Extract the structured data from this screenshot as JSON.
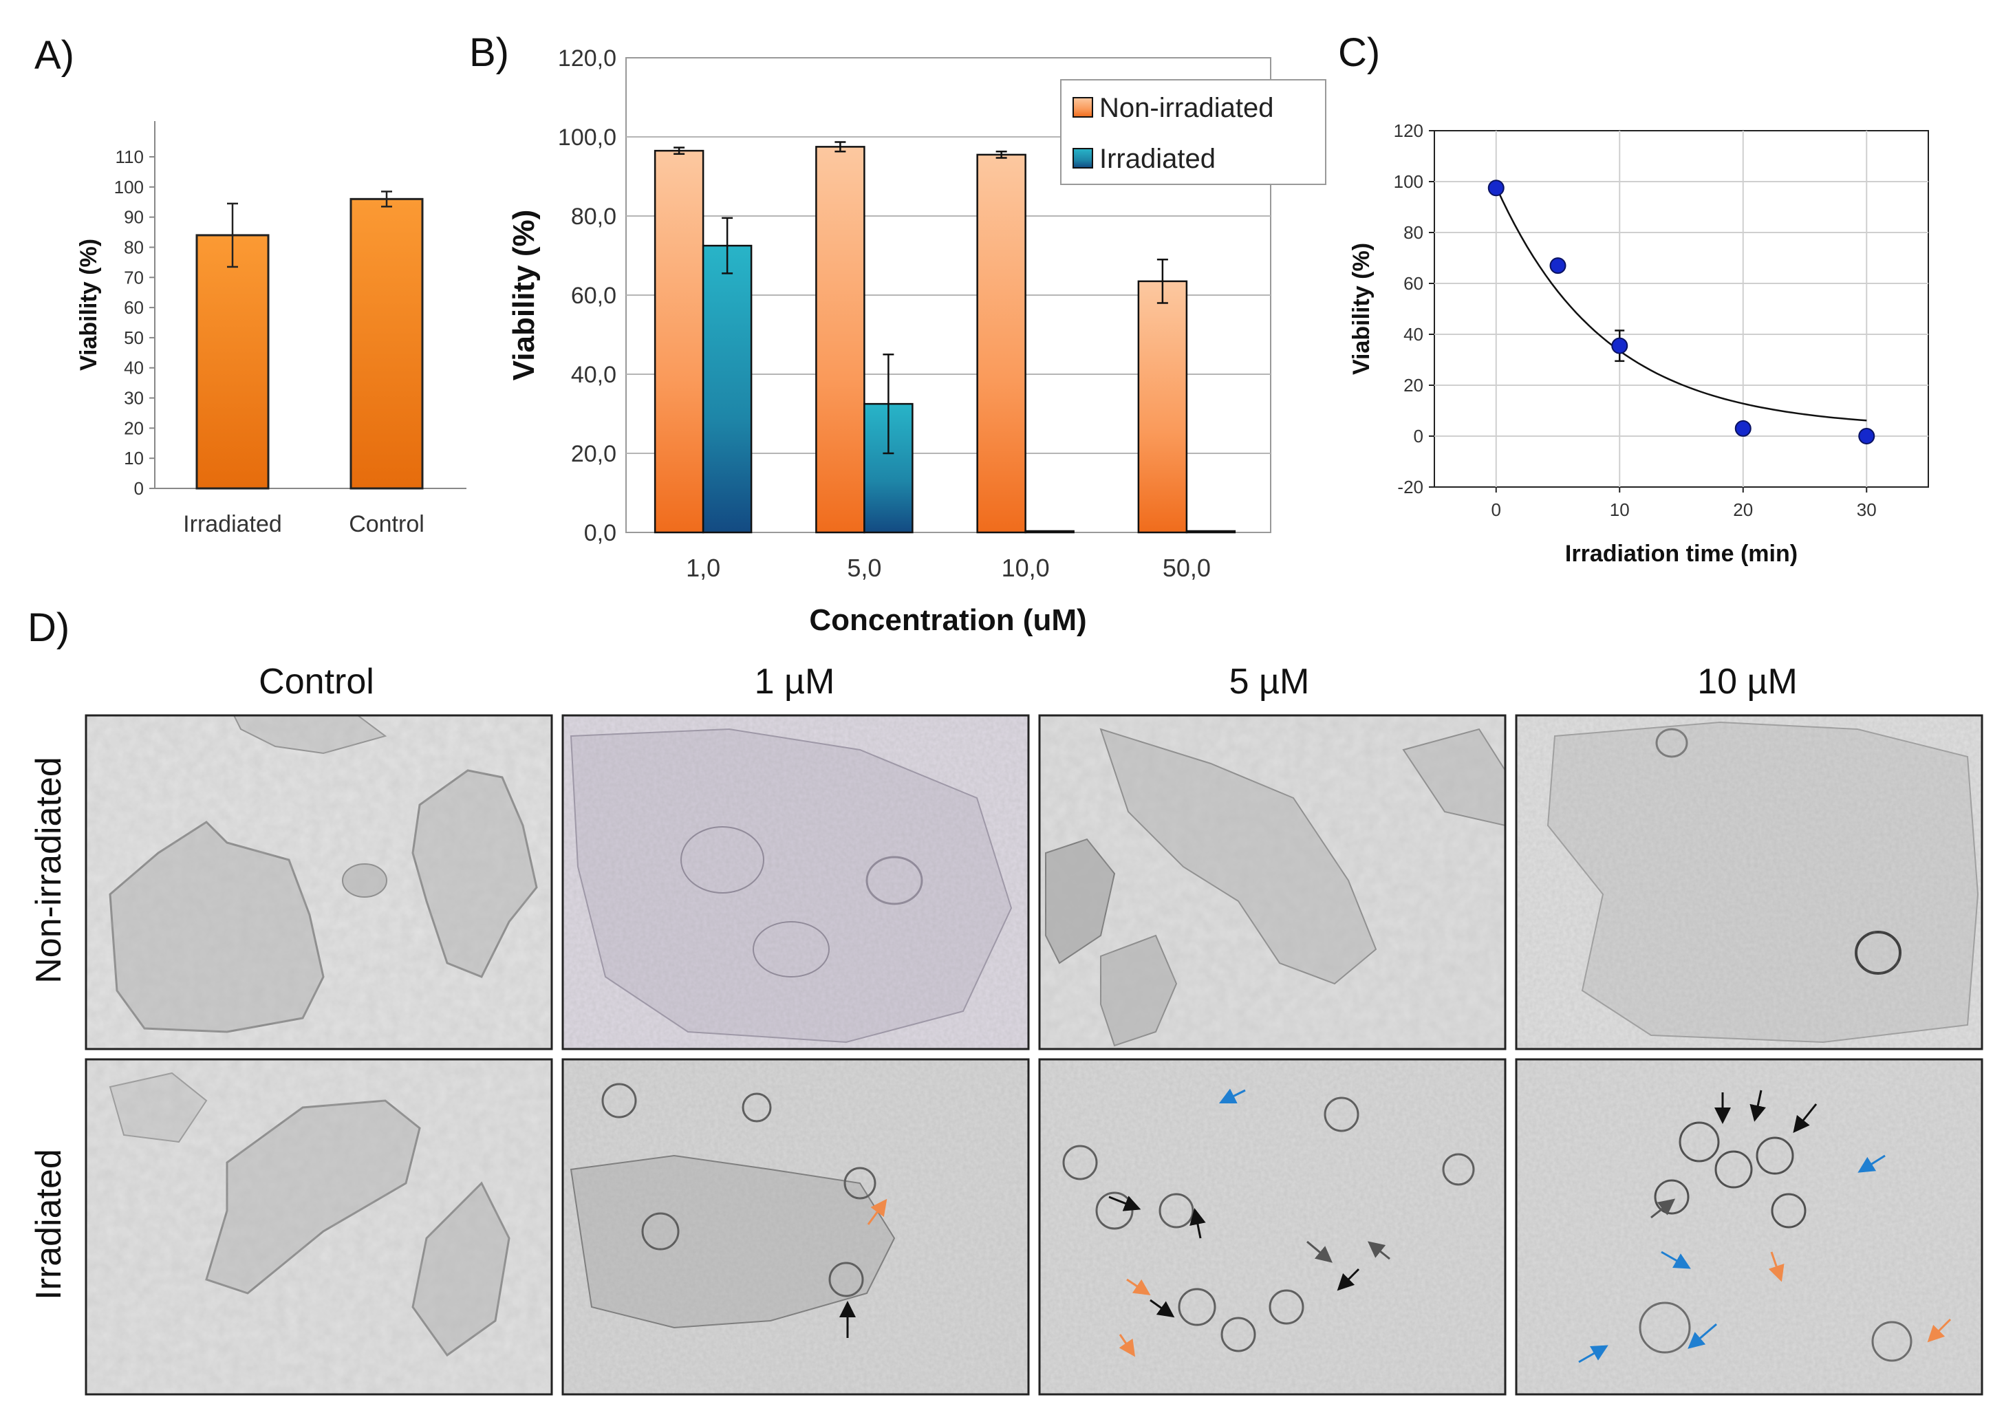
{
  "panels": {
    "a": "A)",
    "b": "B)",
    "c": "C)",
    "d": "D)"
  },
  "chart_data": [
    {
      "panel": "A",
      "type": "bar",
      "categories": [
        "Irradiated",
        "Control"
      ],
      "values": [
        84,
        96
      ],
      "errors": [
        10.5,
        2.5
      ],
      "xlabel": "",
      "ylabel": "Viability (%)",
      "ylim": [
        0,
        110
      ],
      "yticks": [
        "0",
        "10",
        "20",
        "30",
        "40",
        "50",
        "60",
        "70",
        "80",
        "90",
        "100",
        "110"
      ],
      "bar_color": "#f08218"
    },
    {
      "panel": "B",
      "type": "bar",
      "categories": [
        "1,0",
        "5,0",
        "10,0",
        "50,0"
      ],
      "series": [
        {
          "name": "Non-irradiated",
          "values": [
            96.5,
            97.5,
            95.5,
            63.5
          ],
          "errors": [
            0.8,
            1.2,
            0.8,
            5.5
          ],
          "color": "#f7a166"
        },
        {
          "name": "Irradiated",
          "values": [
            72.5,
            32.5,
            0,
            0
          ],
          "errors": [
            7.0,
            12.5,
            0,
            0
          ],
          "color": "#1a8fa8"
        }
      ],
      "xlabel": "Concentration (uM)",
      "ylabel": "Viability (%)",
      "ylim": [
        0,
        120
      ],
      "yticks": [
        "0,0",
        "20,0",
        "40,0",
        "60,0",
        "80,0",
        "100,0",
        "120,0"
      ],
      "grid": true,
      "legend": "top-right"
    },
    {
      "panel": "C",
      "type": "scatter",
      "x": [
        0,
        5,
        10,
        20,
        30
      ],
      "y": [
        97.5,
        67,
        35.5,
        3,
        0
      ],
      "errors": [
        0,
        0,
        6,
        0,
        0
      ],
      "fit": "exponential decay",
      "xlabel": "Irradiation time (min)",
      "ylabel": "Viability (%)",
      "xlim": [
        -5,
        35
      ],
      "ylim": [
        -20,
        120
      ],
      "xticks": [
        "0",
        "10",
        "20",
        "30"
      ],
      "yticks": [
        "-20",
        "0",
        "20",
        "40",
        "60",
        "80",
        "100",
        "120"
      ],
      "grid": true,
      "point_color": "#1428cc"
    }
  ],
  "micrographs": {
    "columns": [
      "Control",
      "1 µM",
      "5 µM",
      "10 µM"
    ],
    "rows": [
      "Non-irradiated",
      "Irradiated"
    ]
  }
}
